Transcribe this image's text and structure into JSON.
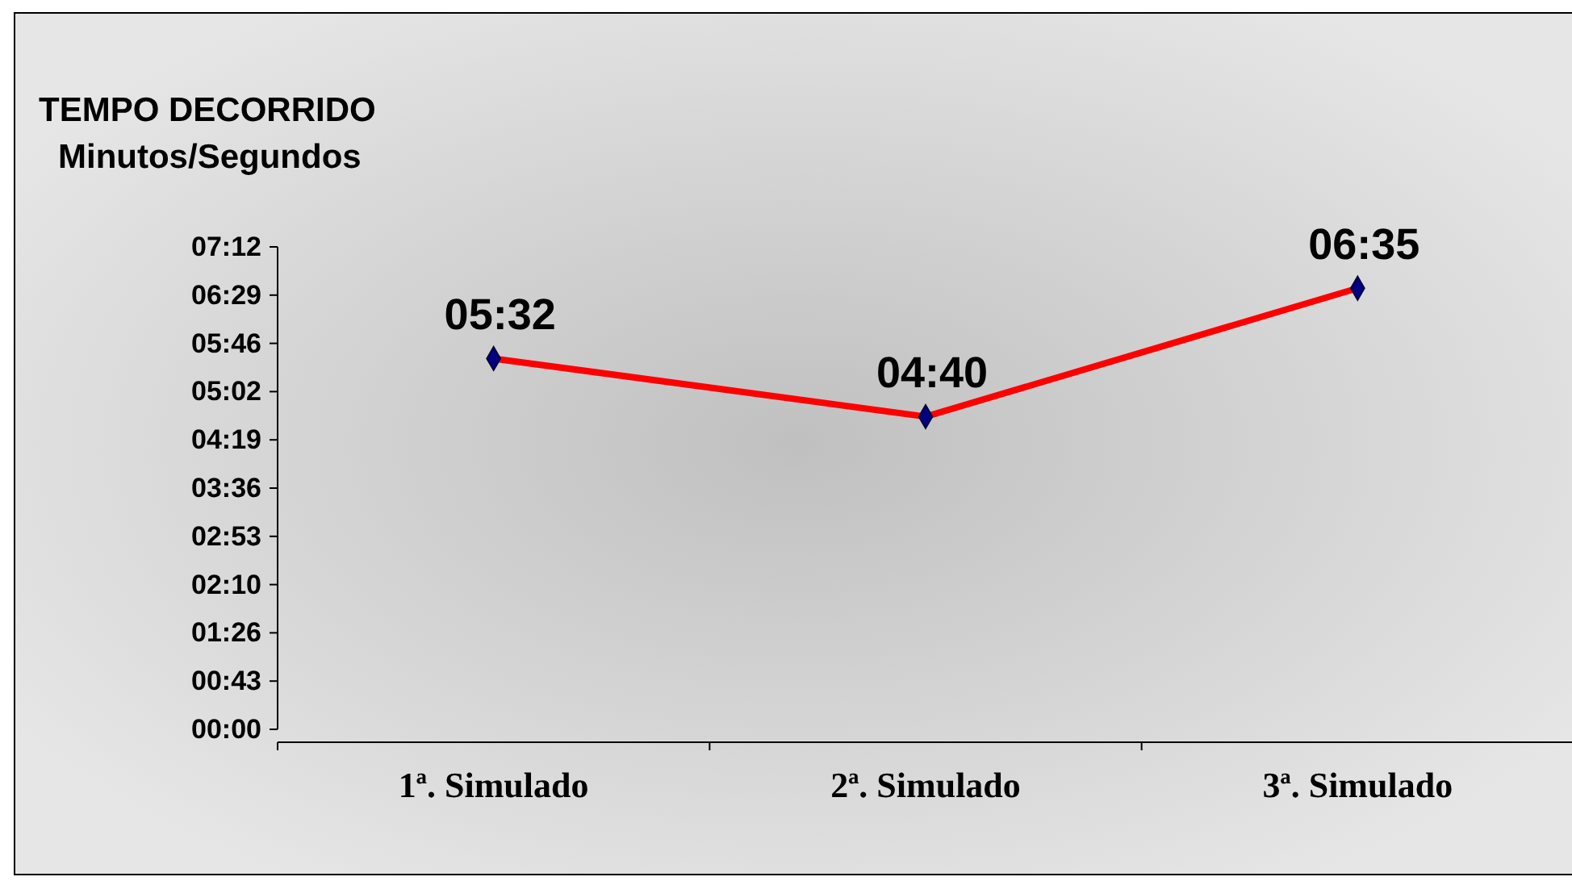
{
  "chart_data": {
    "type": "line",
    "title": "TEMPO DECORRIDO",
    "subtitle": "Minutos/Segundos",
    "categories": [
      "1ª. Simulado",
      "2ª. Simulado",
      "3ª. Simulado"
    ],
    "series": [
      {
        "color": "#ff0000",
        "values": [
          332,
          280,
          395
        ],
        "value_labels": [
          "05:32",
          "04:40",
          "06:35"
        ]
      }
    ],
    "ylim": [
      0,
      432
    ],
    "yticks": [
      {
        "value": 0,
        "label": "00:00"
      },
      {
        "value": 43.2,
        "label": "00:43"
      },
      {
        "value": 86.4,
        "label": "01:26"
      },
      {
        "value": 129.6,
        "label": "02:10"
      },
      {
        "value": 172.8,
        "label": "02:53"
      },
      {
        "value": 216,
        "label": "03:36"
      },
      {
        "value": 259.2,
        "label": "04:19"
      },
      {
        "value": 302.4,
        "label": "05:02"
      },
      {
        "value": 345.6,
        "label": "05:46"
      },
      {
        "value": 388.8,
        "label": "06:29"
      },
      {
        "value": 432,
        "label": "07:12"
      }
    ],
    "marker": "diamond",
    "line_style": "solid",
    "grid": false
  }
}
